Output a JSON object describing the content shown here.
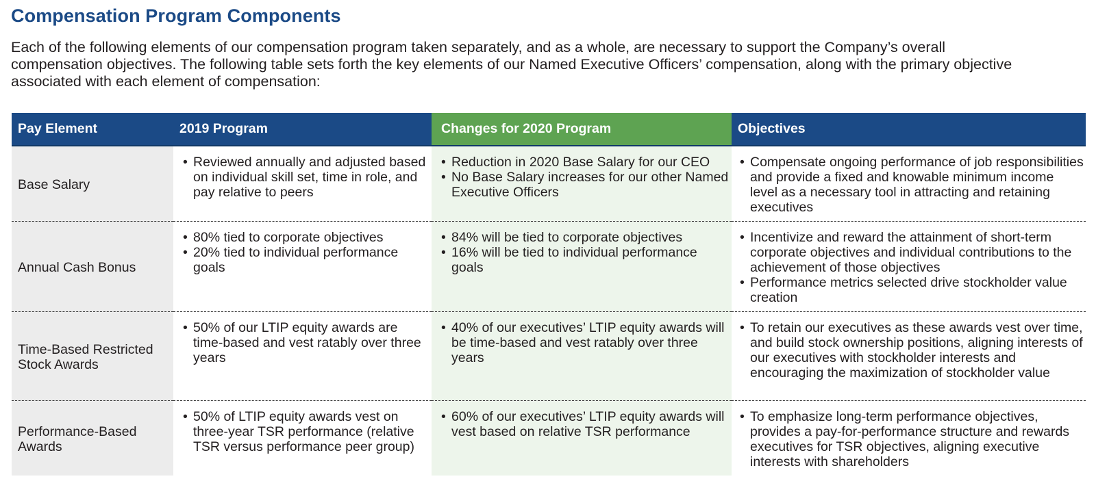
{
  "title": "Compensation Program Components",
  "intro_lines": [
    "Each of the following elements of our compensation program taken separately, and as a whole, are necessary to support the Company’s overall",
    "compensation objectives. The following table sets forth the key elements of our Named Executive Officers’ compensation, along with the primary objective",
    "associated with each element of compensation:"
  ],
  "colors": {
    "navy": "#1b4a86",
    "green": "#5ea352",
    "light_green": "#edf5eb",
    "light_gray": "#ececec"
  },
  "table": {
    "headers": [
      "Pay Element",
      "2019 Program",
      "Changes for 2020 Program",
      "Objectives"
    ],
    "rows": [
      {
        "element": "Base Salary",
        "program_2019": [
          "Reviewed annually and adjusted based on individual skill set, time in role, and pay relative to peers"
        ],
        "changes_2020": [
          "Reduction in 2020 Base Salary for our CEO",
          "No Base Salary increases for our other Named Executive Officers"
        ],
        "objectives": [
          "Compensate ongoing performance of job responsibilities and provide a fixed and knowable minimum income level as a necessary tool in attracting and retaining executives"
        ]
      },
      {
        "element": "Annual Cash Bonus",
        "program_2019": [
          "80% tied to corporate objectives",
          "20% tied to individual performance goals"
        ],
        "changes_2020": [
          "84% will be tied to corporate objectives",
          "16% will be tied to individual performance goals"
        ],
        "objectives": [
          "Incentivize and reward the attainment of short-term corporate objectives and individual contributions to the achievement of those objectives",
          "Performance metrics selected drive stockholder value creation"
        ]
      },
      {
        "element": "Time-Based Restricted Stock Awards",
        "program_2019": [
          "50% of our LTIP equity awards are time-based and vest ratably over three years"
        ],
        "changes_2020": [
          "40% of our executives’ LTIP equity awards will be time-based and vest ratably over three years"
        ],
        "objectives": [
          "To retain our executives as these awards vest over time, and build stock ownership positions, aligning interests of our executives with stockholder interests and encouraging the maximization of stockholder value"
        ]
      },
      {
        "element": "Performance-Based Awards",
        "program_2019": [
          "50% of LTIP equity awards vest on three-year TSR performance (relative TSR versus performance peer group)"
        ],
        "changes_2020": [
          "60% of our executives’ LTIP equity awards will vest based on relative TSR performance"
        ],
        "objectives": [
          "To emphasize long-term performance objectives, provides a pay-for-performance structure and rewards executives for TSR objectives, aligning executive interests with shareholders"
        ]
      }
    ]
  }
}
